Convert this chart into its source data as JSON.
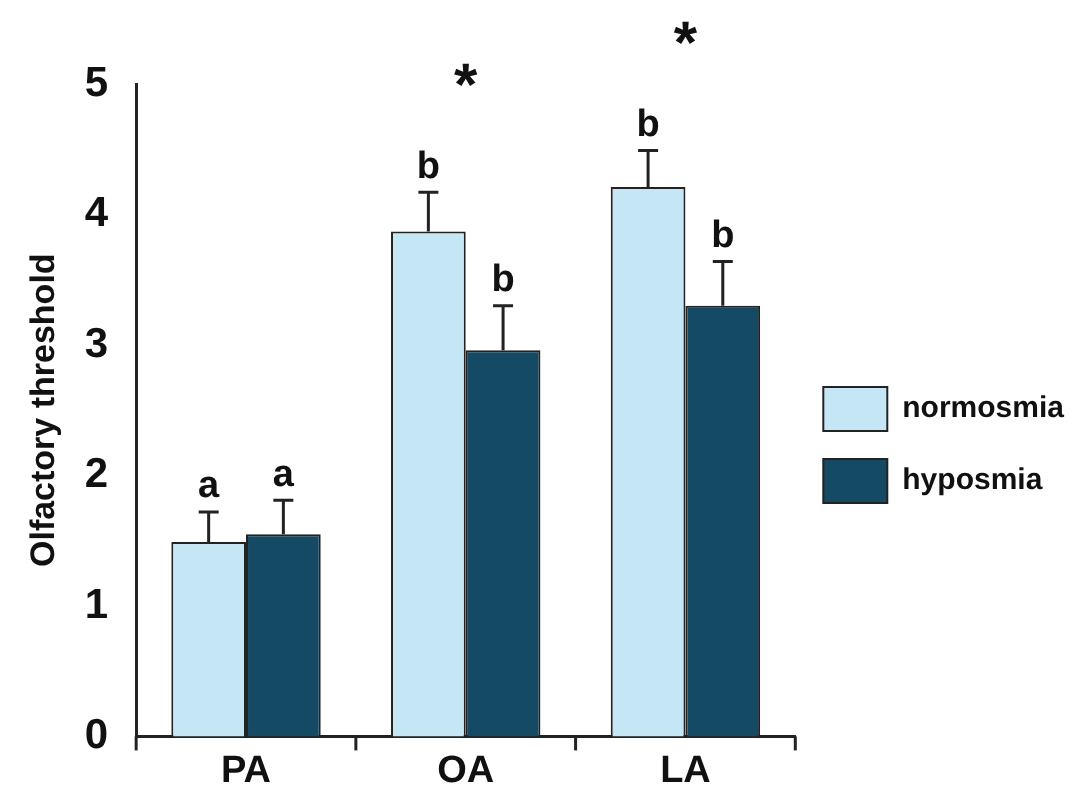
{
  "chart_data": {
    "type": "bar",
    "ylabel": "Olfactory threshold",
    "categories": [
      "PA",
      "OA",
      "LA"
    ],
    "series": [
      {
        "name": "normosmia",
        "color": "#c5e6f5",
        "values": [
          1.49,
          3.87,
          4.21
        ],
        "errors": [
          [
            1.49,
            1.72
          ],
          [
            3.87,
            4.17
          ],
          [
            4.21,
            4.49
          ]
        ],
        "value_labels": [
          "a",
          "b",
          "b"
        ]
      },
      {
        "name": "hyposmia",
        "color": "#144a63",
        "values": [
          1.55,
          2.96,
          3.3
        ],
        "errors": [
          [
            1.55,
            1.81
          ],
          [
            2.96,
            3.3
          ],
          [
            3.3,
            3.64
          ]
        ],
        "value_labels": [
          "a",
          "b",
          "b"
        ]
      }
    ],
    "annotations": [
      "*",
      "*"
    ],
    "ylim": [
      0,
      5
    ],
    "yticks": [
      0,
      1,
      2,
      3,
      4,
      5
    ],
    "grid": false,
    "legend": "right"
  }
}
